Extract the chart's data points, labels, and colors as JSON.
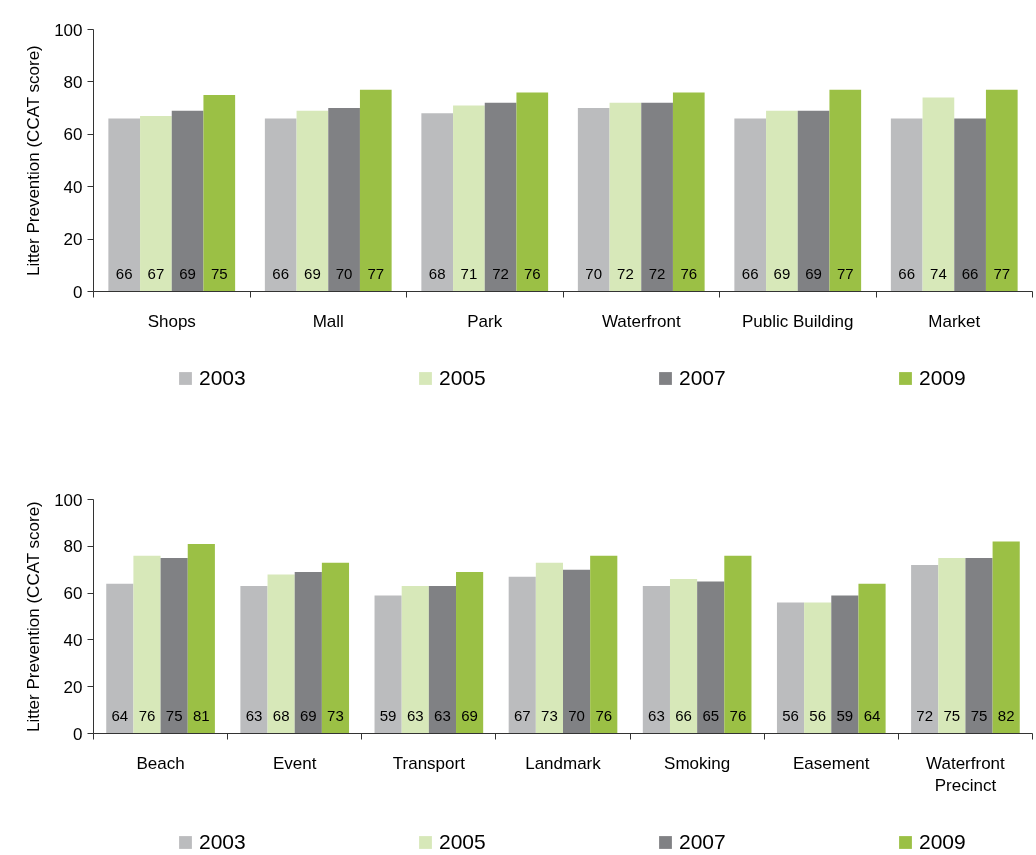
{
  "chart_data": [
    {
      "type": "bar",
      "ylabel": "Litter Prevention (CCAT score)",
      "categories": [
        "Shops",
        "Mall",
        "Park",
        "Waterfront",
        "Public Building",
        "Market"
      ],
      "ylim": [
        0,
        100
      ],
      "yticks": [
        0,
        20,
        40,
        60,
        80,
        100
      ],
      "grid": false,
      "legend": "bottom",
      "data_labels": true,
      "series": [
        {
          "name": "2003",
          "color": "#bbbcbe",
          "values": [
            66,
            66,
            68,
            70,
            66,
            66
          ]
        },
        {
          "name": "2005",
          "color": "#d7e8b9",
          "values": [
            67,
            69,
            71,
            72,
            69,
            74
          ]
        },
        {
          "name": "2007",
          "color": "#808184",
          "values": [
            69,
            70,
            72,
            72,
            69,
            66
          ]
        },
        {
          "name": "2009",
          "color": "#9bc045",
          "values": [
            75,
            77,
            76,
            76,
            77,
            77
          ]
        }
      ]
    },
    {
      "type": "bar",
      "ylabel": "Litter Prevention (CCAT score)",
      "categories": [
        "Beach",
        "Event",
        "Transport",
        "Landmark",
        "Smoking",
        "Easement",
        "Waterfront Precinct"
      ],
      "ylim": [
        0,
        100
      ],
      "yticks": [
        0,
        20,
        40,
        60,
        80,
        100
      ],
      "grid": false,
      "legend": "bottom",
      "data_labels": true,
      "series": [
        {
          "name": "2003",
          "color": "#bbbcbe",
          "values": [
            64,
            63,
            59,
            67,
            63,
            56,
            72
          ]
        },
        {
          "name": "2005",
          "color": "#d7e8b9",
          "values": [
            76,
            68,
            63,
            73,
            66,
            56,
            75
          ]
        },
        {
          "name": "2007",
          "color": "#808184",
          "values": [
            75,
            69,
            63,
            70,
            65,
            59,
            75
          ]
        },
        {
          "name": "2009",
          "color": "#9bc045",
          "values": [
            81,
            73,
            69,
            76,
            76,
            64,
            82
          ]
        }
      ]
    }
  ]
}
